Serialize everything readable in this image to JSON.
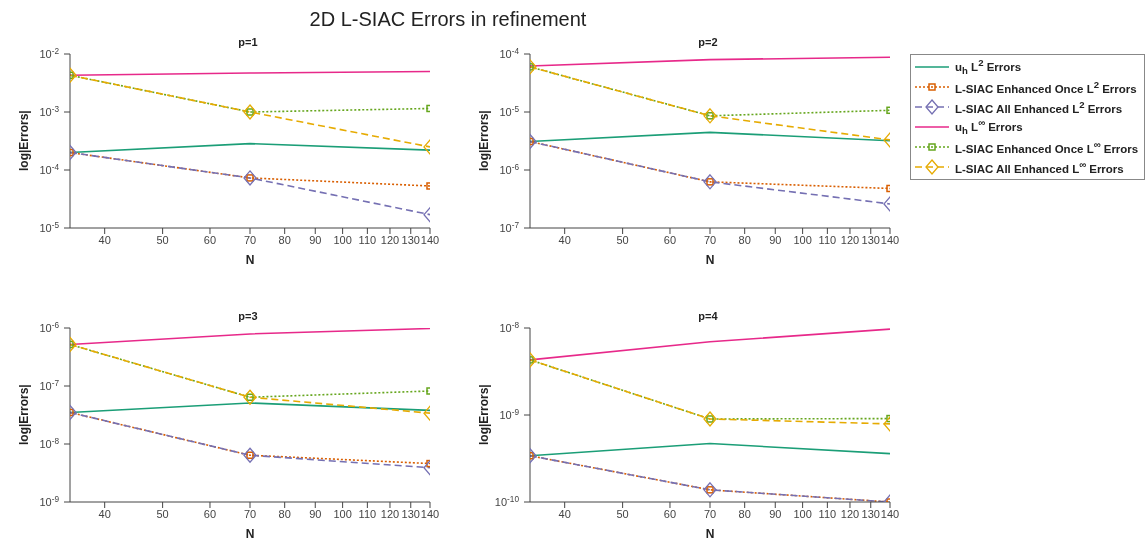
{
  "chart_data": [
    {
      "type": "line",
      "title": "p=1",
      "annotations": [
        "2D L-SIAC Errors in refinement"
      ],
      "xlabel": "N",
      "ylabel": "log|Errors|",
      "log": "xy",
      "x": [
        35,
        70,
        140
      ],
      "xlim": [
        35,
        140
      ],
      "xticks": [
        40,
        50,
        60,
        70,
        80,
        90,
        100,
        110,
        120,
        130,
        140
      ],
      "ylim": [
        1e-05,
        0.01
      ],
      "yticks": [
        {
          "value": 0.01,
          "label": "10$^{-2}$"
        },
        {
          "value": 0.001,
          "label": "10$^{-3}$"
        },
        {
          "value": 0.0001,
          "label": "10$^{-4}$"
        },
        {
          "value": 1e-05,
          "label": "10$^{-5}$"
        }
      ],
      "series": [
        {
          "color": "#1b9e77",
          "line_style": "solid",
          "marker": "none",
          "values": [
            0.0002,
            0.000285,
            0.00022
          ]
        },
        {
          "color": "#d95f02",
          "line_style": "dotted",
          "marker": "square",
          "values": [
            0.0002,
            7.3e-05,
            5.3e-05
          ]
        },
        {
          "color": "#7570b3",
          "line_style": "dashed",
          "marker": "diamond",
          "values": [
            0.0002,
            7.3e-05,
            1.7e-05
          ]
        },
        {
          "color": "#e7298a",
          "line_style": "solid",
          "marker": "none",
          "values": [
            0.0043,
            0.0047,
            0.005
          ]
        },
        {
          "color": "#66a61e",
          "line_style": "dotted",
          "marker": "square",
          "values": [
            0.0043,
            0.001,
            0.00115
          ]
        },
        {
          "color": "#e6ab02",
          "line_style": "dashed",
          "marker": "diamond",
          "values": [
            0.0043,
            0.001,
            0.00025
          ]
        }
      ]
    },
    {
      "type": "line",
      "title": "p=2",
      "xlabel": "N",
      "ylabel": "log|Errors|",
      "log": "xy",
      "legend": "right",
      "x": [
        35,
        70,
        140
      ],
      "xlim": [
        35,
        140
      ],
      "xticks": [
        40,
        50,
        60,
        70,
        80,
        90,
        100,
        110,
        120,
        130,
        140
      ],
      "ylim": [
        1e-07,
        0.0001
      ],
      "yticks": [
        {
          "value": 0.0001,
          "label": "10$^{-4}$"
        },
        {
          "value": 1e-05,
          "label": "10$^{-5}$"
        },
        {
          "value": 1e-06,
          "label": "10$^{-6}$"
        },
        {
          "value": 1e-07,
          "label": "10$^{-7}$"
        }
      ],
      "series": [
        {
          "name": "u$_{h}$ L$^{2}$ Errors",
          "color": "#1b9e77",
          "line_style": "solid",
          "marker": "none",
          "values": [
            3.1e-06,
            4.45e-06,
            3.2e-06
          ]
        },
        {
          "name": "L-SIAC Enhanced Once L$^{2}$ Errors",
          "color": "#d95f02",
          "line_style": "dotted",
          "marker": "square",
          "values": [
            3.1e-06,
            6.25e-07,
            4.8e-07
          ]
        },
        {
          "name": "L-SIAC All Enhanced L$^{2}$ Errors",
          "color": "#7570b3",
          "line_style": "dashed",
          "marker": "diamond",
          "values": [
            3.1e-06,
            6.25e-07,
            2.6e-07
          ]
        },
        {
          "name": "u$_{h}$ L$^{∞}$ Errors",
          "color": "#e7298a",
          "line_style": "solid",
          "marker": "none",
          "values": [
            6.2e-05,
            8e-05,
            8.8e-05
          ]
        },
        {
          "name": "L-SIAC Enhanced Once L$^{∞}$ Errors",
          "color": "#66a61e",
          "line_style": "dotted",
          "marker": "square",
          "values": [
            6e-05,
            8.6e-06,
            1.07e-05
          ]
        },
        {
          "name": "L-SIAC All Enhanced L$^{∞}$ Errors",
          "color": "#e6ab02",
          "line_style": "dashed",
          "marker": "diamond",
          "values": [
            6e-05,
            8.6e-06,
            3.3e-06
          ]
        }
      ]
    },
    {
      "type": "line",
      "title": "p=3",
      "xlabel": "N",
      "ylabel": "log|Errors|",
      "log": "xy",
      "x": [
        35,
        70,
        140
      ],
      "xlim": [
        35,
        140
      ],
      "xticks": [
        40,
        50,
        60,
        70,
        80,
        90,
        100,
        110,
        120,
        130,
        140
      ],
      "ylim": [
        1e-09,
        1e-06
      ],
      "yticks": [
        {
          "value": 1e-06,
          "label": "10$^{-6}$"
        },
        {
          "value": 1e-07,
          "label": "10$^{-7}$"
        },
        {
          "value": 1e-08,
          "label": "10$^{-8}$"
        },
        {
          "value": 1e-09,
          "label": "10$^{-9}$"
        }
      ],
      "series": [
        {
          "color": "#1b9e77",
          "line_style": "solid",
          "marker": "none",
          "values": [
            3.5e-08,
            5.1e-08,
            3.8e-08
          ]
        },
        {
          "color": "#d95f02",
          "line_style": "dotted",
          "marker": "square",
          "values": [
            3.5e-08,
            6.4e-09,
            4.6e-09
          ]
        },
        {
          "color": "#7570b3",
          "line_style": "dashed",
          "marker": "diamond",
          "values": [
            3.5e-08,
            6.4e-09,
            3.9e-09
          ]
        },
        {
          "color": "#e7298a",
          "line_style": "solid",
          "marker": "none",
          "values": [
            5.2e-07,
            7.9e-07,
            9.8e-07
          ]
        },
        {
          "color": "#66a61e",
          "line_style": "dotted",
          "marker": "square",
          "values": [
            5.2e-07,
            6.4e-08,
            8.2e-08
          ]
        },
        {
          "color": "#e6ab02",
          "line_style": "dashed",
          "marker": "diamond",
          "values": [
            5.2e-07,
            6.4e-08,
            3.4e-08
          ]
        }
      ]
    },
    {
      "type": "line",
      "title": "p=4",
      "xlabel": "N",
      "ylabel": "log|Errors|",
      "log": "xy",
      "x": [
        35,
        70,
        140
      ],
      "xlim": [
        35,
        140
      ],
      "xticks": [
        40,
        50,
        60,
        70,
        80,
        90,
        100,
        110,
        120,
        130,
        140
      ],
      "ylim": [
        1e-10,
        1e-08
      ],
      "yticks": [
        {
          "value": 1e-08,
          "label": "10$^{-8}$"
        },
        {
          "value": 1e-09,
          "label": "10$^{-9}$"
        },
        {
          "value": 1e-10,
          "label": "10$^{-10}$"
        }
      ],
      "series": [
        {
          "color": "#1b9e77",
          "line_style": "solid",
          "marker": "none",
          "values": [
            3.4e-10,
            4.7e-10,
            3.6e-10
          ]
        },
        {
          "color": "#d95f02",
          "line_style": "dotted",
          "marker": "square",
          "values": [
            3.4e-10,
            1.38e-10,
            1e-10
          ]
        },
        {
          "color": "#7570b3",
          "line_style": "dashed",
          "marker": "diamond",
          "values": [
            3.4e-10,
            1.38e-10,
            1e-10
          ]
        },
        {
          "color": "#e7298a",
          "line_style": "solid",
          "marker": "none",
          "values": [
            4.3e-09,
            6.95e-09,
            9.7e-09
          ]
        },
        {
          "color": "#66a61e",
          "line_style": "dotted",
          "marker": "square",
          "values": [
            4.3e-09,
            9e-10,
            9.1e-10
          ]
        },
        {
          "color": "#e6ab02",
          "line_style": "dashed",
          "marker": "diamond",
          "values": [
            4.3e-09,
            9e-10,
            7.9e-10
          ]
        }
      ]
    }
  ]
}
